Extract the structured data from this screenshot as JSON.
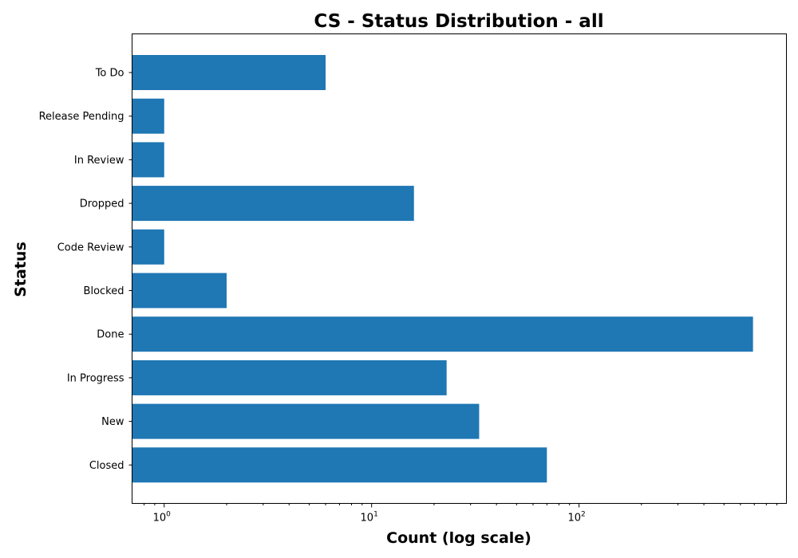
{
  "chart_data": {
    "type": "bar",
    "orientation": "horizontal",
    "title": "CS - Status Distribution - all",
    "xlabel": "Count (log scale)",
    "ylabel": "Status",
    "xscale": "log",
    "xlim": [
      0.7,
      1000
    ],
    "x_ticks": [
      1,
      10,
      100
    ],
    "x_tick_labels": [
      {
        "base": "10",
        "exp": "0"
      },
      {
        "base": "10",
        "exp": "1"
      },
      {
        "base": "10",
        "exp": "2"
      }
    ],
    "categories": [
      "To Do",
      "Release Pending",
      "In Review",
      "Dropped",
      "Code Review",
      "Blocked",
      "Done",
      "In Progress",
      "New",
      "Closed"
    ],
    "values": [
      6,
      1,
      1,
      16,
      1,
      2,
      690,
      23,
      33,
      70
    ],
    "bar_color": "#1f77b4",
    "grid": false,
    "legend": "none"
  }
}
